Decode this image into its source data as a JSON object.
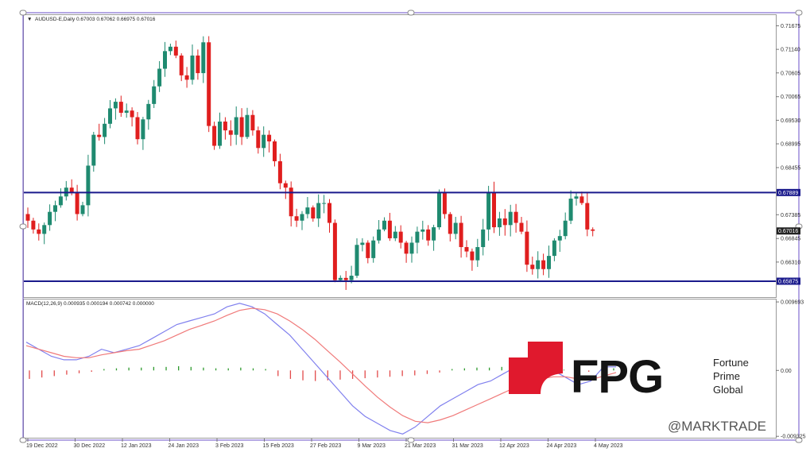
{
  "chart_data": [
    {
      "type": "candlestick",
      "symbol_header": "AUDUSD-E,Daily",
      "ohlc_header": "0.67003 0.67062 0.66975 0.67016",
      "x_tick_labels": [
        "19 Dec 2022",
        "30 Dec 2022",
        "12 Jan 2023",
        "24 Jan 2023",
        "3 Feb 2023",
        "15 Feb 2023",
        "27 Feb 2023",
        "9 Mar 2023",
        "21 Mar 2023",
        "31 Mar 2023",
        "12 Apr 2023",
        "24 Apr 2023",
        "4 May 2023"
      ],
      "y_tick_labels": [
        "0.71675",
        "0.71140",
        "0.70605",
        "0.70065",
        "0.69530",
        "0.68995",
        "0.68455",
        "0.67385",
        "0.66845",
        "0.66310"
      ],
      "ylim": [
        0.6555,
        0.719
      ],
      "horizontal_levels": [
        {
          "value": 0.67889,
          "label": "0.67889"
        },
        {
          "value": 0.65875,
          "label": "0.65875"
        }
      ],
      "current_price": {
        "value": 0.67016,
        "label": "0.67016"
      },
      "approx_close_series": [
        0.6725,
        0.6705,
        0.6695,
        0.6715,
        0.6745,
        0.676,
        0.678,
        0.68,
        0.679,
        0.674,
        0.676,
        0.685,
        0.692,
        0.6915,
        0.6945,
        0.698,
        0.6995,
        0.697,
        0.6975,
        0.696,
        0.691,
        0.6955,
        0.699,
        0.703,
        0.707,
        0.711,
        0.712,
        0.71,
        0.7055,
        0.7045,
        0.71,
        0.706,
        0.713,
        0.694,
        0.6895,
        0.695,
        0.693,
        0.692,
        0.696,
        0.6915,
        0.6965,
        0.693,
        0.689,
        0.692,
        0.6905,
        0.686,
        0.681,
        0.68,
        0.6735,
        0.6725,
        0.674,
        0.6755,
        0.673,
        0.6765,
        0.6765,
        0.672,
        0.659,
        0.6595,
        0.659,
        0.66,
        0.667,
        0.6675,
        0.664,
        0.668,
        0.6705,
        0.6725,
        0.6685,
        0.67,
        0.6675,
        0.665,
        0.6675,
        0.67,
        0.6705,
        0.668,
        0.671,
        0.679,
        0.674,
        0.6695,
        0.672,
        0.6665,
        0.6655,
        0.6635,
        0.6665,
        0.6705,
        0.679,
        0.671,
        0.673,
        0.6715,
        0.6745,
        0.672,
        0.67,
        0.6625,
        0.6615,
        0.6635,
        0.6615,
        0.6645,
        0.668,
        0.669,
        0.6725,
        0.6775,
        0.678,
        0.6765,
        0.6705,
        0.6702
      ]
    },
    {
      "type": "macd",
      "indicator_header": "MACD(12,26,9) 0.000935 0.000194 0.000742 0.000000",
      "y_tick_labels": [
        "0.009693",
        "0.00",
        "-0.009325"
      ],
      "ylim": [
        -0.0093,
        0.0097
      ],
      "approx_main_series": [
        0.004,
        0.003,
        0.002,
        0.0015,
        0.0015,
        0.002,
        0.003,
        0.0025,
        0.003,
        0.0035,
        0.0045,
        0.0055,
        0.0065,
        0.007,
        0.0075,
        0.008,
        0.009,
        0.0095,
        0.009,
        0.008,
        0.0065,
        0.005,
        0.003,
        0.001,
        -0.001,
        -0.003,
        -0.005,
        -0.0065,
        -0.0075,
        -0.0085,
        -0.009,
        -0.008,
        -0.0065,
        -0.005,
        -0.004,
        -0.003,
        -0.002,
        -0.0015,
        -0.0005,
        0.0005,
        0.001,
        0.001,
        0.0,
        -0.001,
        -0.002,
        -0.0015,
        0.0005,
        0.0005
      ],
      "approx_signal_series": [
        0.0035,
        0.003,
        0.0025,
        0.002,
        0.0018,
        0.0018,
        0.0022,
        0.0025,
        0.0028,
        0.003,
        0.0036,
        0.0042,
        0.005,
        0.0058,
        0.0064,
        0.007,
        0.0078,
        0.0085,
        0.0088,
        0.0086,
        0.008,
        0.007,
        0.0058,
        0.0044,
        0.0028,
        0.0012,
        -0.0005,
        -0.0022,
        -0.0038,
        -0.0052,
        -0.0064,
        -0.0072,
        -0.0074,
        -0.007,
        -0.0064,
        -0.0056,
        -0.0048,
        -0.004,
        -0.0032,
        -0.0024,
        -0.0018,
        -0.0012,
        -0.0009,
        -0.0009,
        -0.0012,
        -0.0013,
        -0.0008,
        -0.0003
      ],
      "approx_histogram": [
        -0.0012,
        -0.001,
        -0.0008,
        -0.0006,
        -0.0004,
        -0.0002,
        0.0002,
        0.0003,
        0.0004,
        0.0004,
        0.0005,
        0.0005,
        0.0006,
        0.0005,
        0.0004,
        0.0003,
        0.0003,
        0.0004,
        0.0003,
        0.0002,
        -0.0008,
        -0.0012,
        -0.0014,
        -0.0015,
        -0.0014,
        -0.0013,
        -0.0012,
        -0.0011,
        -0.001,
        -0.0009,
        -0.0008,
        -0.0007,
        -0.0005,
        -0.0003,
        0.0002,
        0.0003,
        0.0004,
        0.0004,
        0.0005,
        0.0005,
        0.0004,
        0.0003,
        0.0002,
        0.0001,
        -0.0001,
        -0.0002,
        0.0002,
        0.0003
      ]
    }
  ],
  "colors": {
    "bull": "#1f8a70",
    "bear": "#e01e1e",
    "level_line": "#1a1a8c",
    "macd_main": "#8080ee",
    "macd_signal": "#f07a7a",
    "hist_pos": "#2e9a2e",
    "hist_neg": "#e24a4a",
    "logo_red": "#e0192d",
    "price_tag": "#1a1a8c"
  },
  "logo": {
    "abbr": "FPG",
    "name_lines": [
      "Fortune",
      "Prime",
      "Global"
    ]
  },
  "watermark": "@MARKTRADE"
}
